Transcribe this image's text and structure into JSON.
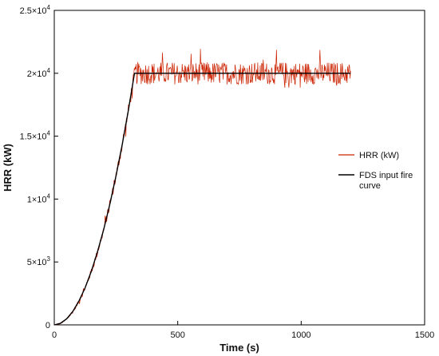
{
  "chart_data": {
    "type": "line",
    "title": "",
    "xlabel": "Time  (s)",
    "ylabel": "HRR  (kW)",
    "xlim": [
      0,
      1500
    ],
    "ylim": [
      0,
      25000
    ],
    "x_ticks": [
      0,
      500,
      1000,
      1500
    ],
    "x_tick_labels": [
      "0",
      "500",
      "1000",
      "1500"
    ],
    "y_ticks": [
      0,
      5000,
      10000,
      15000,
      20000,
      25000
    ],
    "y_tick_labels": [
      {
        "mantissa": "0",
        "exponent": ""
      },
      {
        "mantissa": "5×10",
        "exponent": "3"
      },
      {
        "mantissa": "1×10",
        "exponent": "4"
      },
      {
        "mantissa": "1.5×10",
        "exponent": "4"
      },
      {
        "mantissa": "2×10",
        "exponent": "4"
      },
      {
        "mantissa": "2.5×10",
        "exponent": "4"
      }
    ],
    "grid": false,
    "legend_position": "right",
    "series": [
      {
        "name": "HRR (kW)",
        "color": "#cc2200",
        "style": "noisy",
        "x_range": [
          0,
          1200
        ],
        "step": 2,
        "t_growth": 325,
        "plateau_value": 20000,
        "noise_amplitude_kW": 900,
        "max_kW": 22500,
        "min_kW": 17500
      },
      {
        "name": "FDS input fire\ncurve",
        "color": "#000000",
        "style": "solid",
        "x": [
          0,
          25,
          50,
          75,
          100,
          125,
          150,
          175,
          200,
          225,
          250,
          275,
          300,
          325,
          1200
        ],
        "y": [
          0,
          118,
          473,
          1065,
          1893,
          2959,
          4260,
          5799,
          7574,
          9586,
          11834,
          14320,
          17041,
          20000,
          20000
        ]
      }
    ]
  }
}
